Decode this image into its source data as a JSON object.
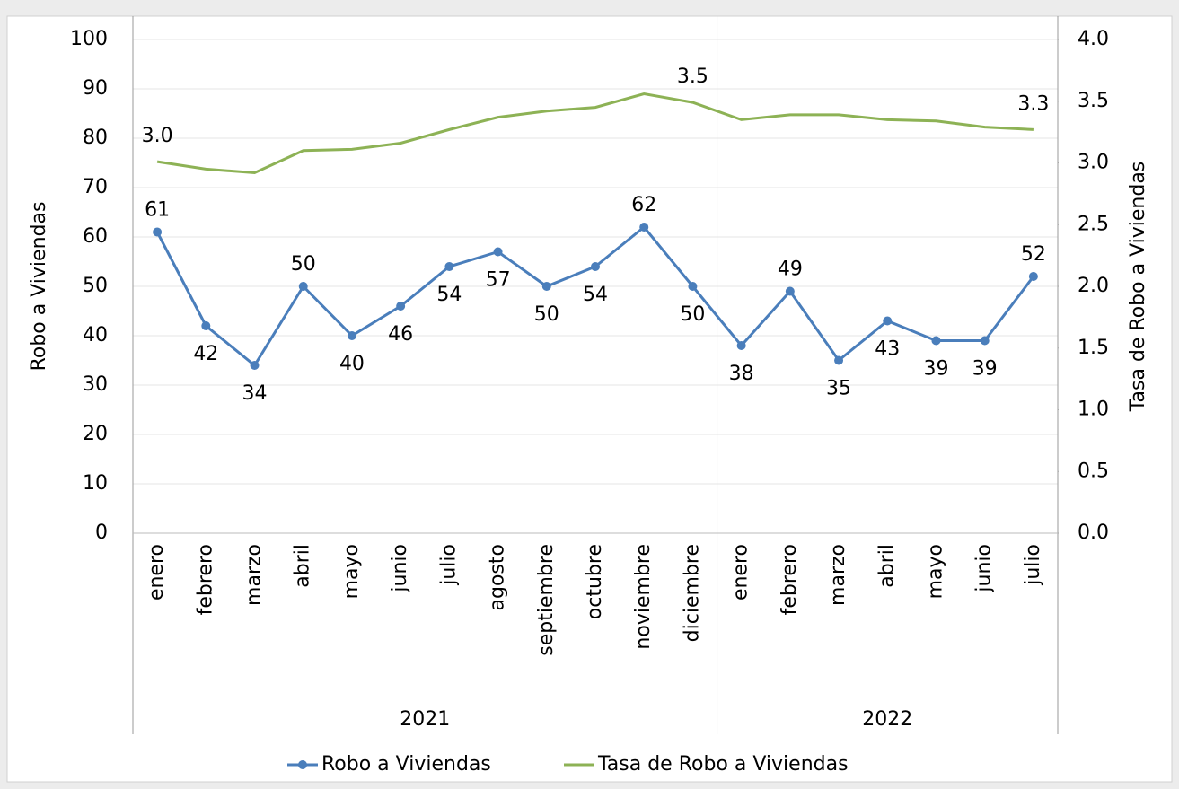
{
  "chart_data": {
    "type": "line",
    "categories": [
      "enero",
      "febrero",
      "marzo",
      "abril",
      "mayo",
      "junio",
      "julio",
      "agosto",
      "septiembre",
      "octubre",
      "noviembre",
      "diciembre",
      "enero",
      "febrero",
      "marzo",
      "abril",
      "mayo",
      "junio",
      "julio"
    ],
    "groups": [
      {
        "name": "2021",
        "size": 12
      },
      {
        "name": "2022",
        "size": 7
      }
    ],
    "series": [
      {
        "name": "Robo a Viviendas",
        "color": "#4a7ebb",
        "markers": true,
        "values": [
          61,
          42,
          34,
          50,
          40,
          46,
          54,
          57,
          50,
          54,
          62,
          50,
          38,
          49,
          35,
          43,
          39,
          39,
          52
        ]
      },
      {
        "name": "Tasa de Robo a Viviendas",
        "color": "#8db255",
        "axis": "y2",
        "markers": false,
        "values": [
          3.01,
          2.95,
          2.92,
          3.1,
          3.11,
          3.16,
          3.27,
          3.37,
          3.42,
          3.45,
          3.56,
          3.49,
          3.35,
          3.39,
          3.39,
          3.35,
          3.34,
          3.29,
          3.27
        ],
        "value_labels": [
          "3.0",
          null,
          null,
          null,
          null,
          null,
          null,
          null,
          null,
          null,
          null,
          "3.5",
          null,
          null,
          null,
          null,
          null,
          null,
          "3.3"
        ]
      }
    ],
    "ylabel": "Robo a Viviendas",
    "y2label": "Tasa de Robo a Viviendas",
    "ylim": [
      0,
      100
    ],
    "yticks": [
      0,
      10,
      20,
      30,
      40,
      50,
      60,
      70,
      80,
      90,
      100
    ],
    "y2lim": [
      0,
      4
    ],
    "y2ticks": [
      {
        "value": 0,
        "label": "0.0"
      },
      0.5,
      {
        "value": 1,
        "label": "1.0"
      },
      1.5,
      {
        "value": 2,
        "label": "2.0"
      },
      2.5,
      {
        "value": 3,
        "label": "3.0"
      },
      3.5,
      {
        "value": 4,
        "label": "4.0"
      }
    ],
    "grid": true,
    "legend": "bottom"
  }
}
